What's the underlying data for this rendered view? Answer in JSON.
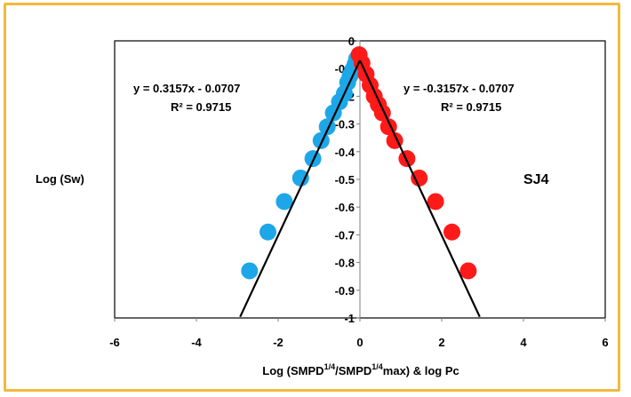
{
  "chart_data": {
    "type": "scatter",
    "xlim": [
      -6,
      6
    ],
    "ylim": [
      -1,
      0
    ],
    "x_ticks": [
      "-6",
      "-4",
      "-2",
      "0",
      "2",
      "4",
      "6"
    ],
    "y_ticks": [
      "0",
      "-0.1",
      "-0.2",
      "-0.3",
      "-0.4",
      "-0.5",
      "-0.6",
      "-0.7",
      "-0.8",
      "-0.9",
      "-1"
    ],
    "ylabel": "Log (Sw)",
    "xlabel": {
      "part1": "Log (SMPD",
      "sup1": "1/4",
      "part2": "/SMPD",
      "sup2": "1/4",
      "part3": "max) & log Pc"
    },
    "sample_label": "SJ4",
    "colors": {
      "left": "#1ea7e8",
      "right": "#ff1a1a",
      "line": "#000000",
      "frame": "#f5b93a"
    },
    "series": [
      {
        "color_key": "left",
        "points": [
          {
            "x": -0.08,
            "y": -0.065
          },
          {
            "x": -0.12,
            "y": -0.085
          },
          {
            "x": -0.18,
            "y": -0.105
          },
          {
            "x": -0.24,
            "y": -0.125
          },
          {
            "x": -0.3,
            "y": -0.15
          },
          {
            "x": -0.38,
            "y": -0.19
          },
          {
            "x": -0.5,
            "y": -0.22
          },
          {
            "x": -0.65,
            "y": -0.26
          },
          {
            "x": -0.8,
            "y": -0.31
          },
          {
            "x": -0.95,
            "y": -0.36
          },
          {
            "x": -1.15,
            "y": -0.425
          },
          {
            "x": -1.45,
            "y": -0.495
          },
          {
            "x": -1.85,
            "y": -0.58
          },
          {
            "x": -2.25,
            "y": -0.69
          },
          {
            "x": -2.7,
            "y": -0.83
          }
        ],
        "equation": "y = 0.3157x - 0.0707",
        "r2": "R² = 0.9715"
      },
      {
        "color_key": "right",
        "points": [
          {
            "x": -0.02,
            "y": -0.05
          },
          {
            "x": 0.05,
            "y": -0.08
          },
          {
            "x": 0.15,
            "y": -0.12
          },
          {
            "x": 0.25,
            "y": -0.16
          },
          {
            "x": 0.35,
            "y": -0.2
          },
          {
            "x": 0.45,
            "y": -0.23
          },
          {
            "x": 0.55,
            "y": -0.26
          },
          {
            "x": 0.7,
            "y": -0.31
          },
          {
            "x": 0.85,
            "y": -0.36
          },
          {
            "x": 1.15,
            "y": -0.425
          },
          {
            "x": 1.45,
            "y": -0.495
          },
          {
            "x": 1.85,
            "y": -0.58
          },
          {
            "x": 2.25,
            "y": -0.69
          },
          {
            "x": 2.65,
            "y": -0.83
          }
        ],
        "equation": "y = -0.3157x - 0.0707",
        "r2": "R² = 0.9715"
      }
    ],
    "trendlines": [
      {
        "slope": 0.3157,
        "intercept": -0.0707,
        "x_from": -2.93,
        "x_to": 0
      },
      {
        "slope": -0.3157,
        "intercept": -0.0707,
        "x_from": 0,
        "x_to": 2.93
      }
    ]
  }
}
